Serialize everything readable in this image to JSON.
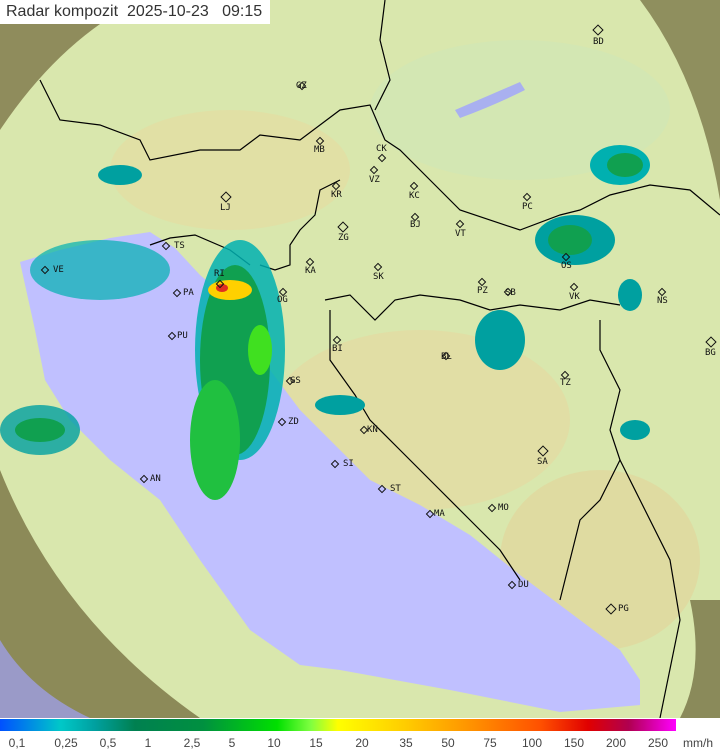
{
  "title": {
    "label": "Radar kompozit",
    "date": "2025-10-23",
    "time": "09:15"
  },
  "map": {
    "colors": {
      "sea": "#c0c0ff",
      "coverage": "#d8ecb0",
      "outside": "#8a8a5a",
      "border": "#000000",
      "rain_light": "#00b0b0",
      "rain_mid": "#00a040",
      "rain_heavy": "#ffd000"
    },
    "cities": [
      "BD",
      "GZ",
      "MB",
      "CK",
      "VZ",
      "KR",
      "KC",
      "LJ",
      "ZG",
      "BJ",
      "VT",
      "PC",
      "TS",
      "RI",
      "KA",
      "SK",
      "VE",
      "PA",
      "OG",
      "PZ",
      "SB",
      "OS",
      "VK",
      "NS",
      "PU",
      "BI",
      "BL",
      "BG",
      "GS",
      "TZ",
      "ZD",
      "KN",
      "SI",
      "SA",
      "AN",
      "ST",
      "MA",
      "MO",
      "DU",
      "PG"
    ]
  },
  "legend": {
    "values": [
      "0,1",
      "0,25",
      "0,5",
      "1",
      "2,5",
      "5",
      "10",
      "15",
      "20",
      "35",
      "50",
      "75",
      "100",
      "150",
      "200",
      "250"
    ],
    "unit": "mm/h"
  }
}
